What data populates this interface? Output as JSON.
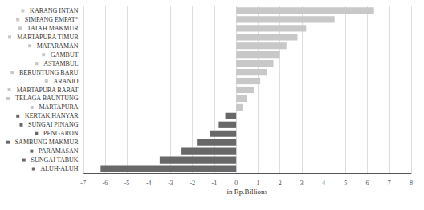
{
  "chart_data": {
    "type": "bar",
    "orientation": "horizontal",
    "categories": [
      "KARANG INTAN",
      "SIMPANG EMPAT*",
      "TATAH MAKMUR",
      "MARTAPURA TIMUR",
      "MATARAMAN",
      "GAMBUT",
      "ASTAMBUL",
      "BERUNTUNG BARU",
      "ARANIO",
      "MARTAPURA BARAT",
      "TELAGA BAUNTUNG",
      "MARTAPURA",
      "KERTAK HANYAR",
      "SUNGAI PINANG",
      "PENGARON",
      "SAMBUNG MAKMUR",
      "PARAMASAN",
      "SUNGAI TABUK",
      "ALUH-ALUH"
    ],
    "values": [
      6.3,
      4.5,
      3.2,
      2.8,
      2.3,
      2.0,
      1.7,
      1.4,
      1.1,
      0.8,
      0.5,
      0.3,
      -0.5,
      -0.8,
      -1.2,
      -1.8,
      -2.5,
      -3.5,
      -6.2
    ],
    "colors": [
      "#c8c8c8",
      "#c8c8c8",
      "#c8c8c8",
      "#c8c8c8",
      "#c8c8c8",
      "#c8c8c8",
      "#c8c8c8",
      "#c8c8c8",
      "#c8c8c8",
      "#c8c8c8",
      "#c8c8c8",
      "#c8c8c8",
      "#686868",
      "#686868",
      "#686868",
      "#686868",
      "#686868",
      "#686868",
      "#686868"
    ],
    "xlabel": "in Rp.Billions",
    "xlim": [
      -7,
      8
    ],
    "xticks": [
      -7,
      -6,
      -5,
      -4,
      -3,
      -2,
      -1,
      0,
      1,
      2,
      3,
      4,
      5,
      6,
      7,
      8
    ],
    "grid": true
  }
}
